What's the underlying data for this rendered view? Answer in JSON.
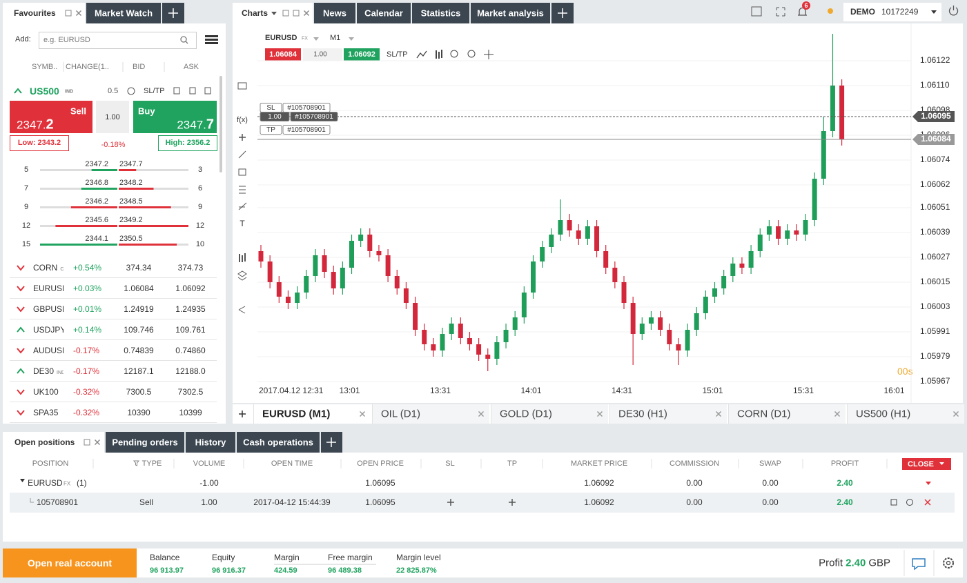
{
  "favourites_panel": {
    "tabs": [
      "Favourites",
      "Market Watch"
    ],
    "add_label": "Add:",
    "search_placeholder": "e.g. EURUSD",
    "columns": [
      "SYMB..",
      "CHANGE(1..",
      "BID",
      "ASK"
    ],
    "instrument": {
      "symbol": "US500",
      "kind": "IND",
      "spread": "0.5",
      "sltp": "SL/TP",
      "sell_label": "Sell",
      "sell_price": [
        "2347.",
        "2"
      ],
      "volume": "1.00",
      "buy_label": "Buy",
      "buy_price": [
        "2347.",
        "7"
      ],
      "low": "Low: 2343.2",
      "change": "-0.18%",
      "high": "High: 2356.2"
    },
    "depth": [
      {
        "bid_volume": 5,
        "bid": "2347.2",
        "ask": "2347.7",
        "ask_volume": 3,
        "bid_color": "#1fa35f",
        "ask_color": "#e0313a"
      },
      {
        "bid_volume": 7,
        "bid": "2346.8",
        "ask": "2348.2",
        "ask_volume": 6,
        "bid_color": "#1fa35f",
        "ask_color": "#e0313a"
      },
      {
        "bid_volume": 9,
        "bid": "2346.2",
        "ask": "2348.5",
        "ask_volume": 9,
        "bid_color": "#e0313a",
        "ask_color": "#e0313a"
      },
      {
        "bid_volume": 12,
        "bid": "2345.6",
        "ask": "2349.2",
        "ask_volume": 12,
        "bid_color": "#e0313a",
        "ask_color": "#e0313a"
      },
      {
        "bid_volume": 15,
        "bid": "2344.1",
        "ask": "2350.5",
        "ask_volume": 10,
        "bid_color": "#1fa35f",
        "ask_color": "#e0313a"
      }
    ],
    "watchlist": [
      {
        "symbol": "CORN",
        "kind": "CMD",
        "direction": "down",
        "change": "+0.54%",
        "bid": "374.34",
        "ask": "374.73"
      },
      {
        "symbol": "EURUSD",
        "direction": "down",
        "change": "+0.03%",
        "bid": "1.06084",
        "ask": "1.06092"
      },
      {
        "symbol": "GBPUSD",
        "direction": "down",
        "change": "+0.01%",
        "bid": "1.24919",
        "ask": "1.24935"
      },
      {
        "symbol": "USDJPY",
        "direction": "up",
        "change": "+0.14%",
        "bid": "109.746",
        "ask": "109.761"
      },
      {
        "symbol": "AUDUSD",
        "direction": "down",
        "change": "-0.17%",
        "bid": "0.74839",
        "ask": "0.74860"
      },
      {
        "symbol": "DE30",
        "kind": "IND",
        "direction": "up",
        "change": "-0.17%",
        "bid": "12187.1",
        "ask": "12188.0"
      },
      {
        "symbol": "UK100",
        "direction": "down",
        "change": "-0.32%",
        "bid": "7300.5",
        "ask": "7302.5"
      },
      {
        "symbol": "SPA35",
        "direction": "down",
        "change": "-0.32%",
        "bid": "10390",
        "ask": "10399"
      }
    ]
  },
  "chart_panel": {
    "tabs": [
      "Charts",
      "News",
      "Calendar",
      "Statistics",
      "Market analysis"
    ],
    "notifications": "6",
    "account_type": "DEMO",
    "account_id": "10172249",
    "symbol": "EURUSD",
    "symbol_kind": "FX",
    "timeframe": "M1",
    "sell_price": "1.06084",
    "volume": "1.00",
    "buy_price": "1.06092",
    "sltp": "SL/TP",
    "toolbar_texts": [
      "f(x)",
      "T"
    ],
    "order_labels": {
      "sl": "SL",
      "tp": "TP",
      "order_id": "#105708901",
      "volume": "1.00"
    },
    "timer": "00s",
    "instrument_tabs": [
      "EURUSD (M1)",
      "OIL (D1)",
      "GOLD (D1)",
      "DE30 (H1)",
      "CORN (D1)",
      "US500 (H1)"
    ]
  },
  "chart_data": {
    "type": "candlestick",
    "up_color": "#1f9e5a",
    "down_color": "#d3283b",
    "grid": true,
    "ylim": [
      1.05958,
      1.06138
    ],
    "yticks": [
      1.06122,
      {
        "value": 1.0611,
        "label": "1.06110"
      },
      1.06098,
      1.06086,
      1.06074,
      1.06062,
      1.06051,
      1.06039,
      1.06027,
      1.06015,
      1.06003,
      1.05991,
      1.05979,
      1.05967
    ],
    "xtick_labels": [
      "2017.04.12 12:31",
      "13:01",
      "13:31",
      "14:01",
      "14:31",
      "15:01",
      "15:31",
      "16:01"
    ],
    "position_line": 1.06095,
    "price_line": 1.06084,
    "ohlc": [
      [
        1.0603,
        1.06033,
        1.06022,
        1.06025
      ],
      [
        1.06025,
        1.06028,
        1.06012,
        1.06015
      ],
      [
        1.06015,
        1.06018,
        1.06005,
        1.06008
      ],
      [
        1.06008,
        1.06011,
        1.06002,
        1.06005
      ],
      [
        1.06005,
        1.06013,
        1.06002,
        1.0601
      ],
      [
        1.0601,
        1.06021,
        1.06007,
        1.06018
      ],
      [
        1.06018,
        1.06031,
        1.06015,
        1.06028
      ],
      [
        1.06028,
        1.06031,
        1.06017,
        1.0602
      ],
      [
        1.0602,
        1.06023,
        1.06009,
        1.06012
      ],
      [
        1.06012,
        1.06025,
        1.06009,
        1.06022
      ],
      [
        1.06022,
        1.06038,
        1.06019,
        1.06035
      ],
      [
        1.06035,
        1.06041,
        1.06032,
        1.06038
      ],
      [
        1.06038,
        1.06041,
        1.06027,
        1.0603
      ],
      [
        1.0603,
        1.06033,
        1.06025,
        1.06028
      ],
      [
        1.06028,
        1.06031,
        1.06015,
        1.06018
      ],
      [
        1.06018,
        1.06021,
        1.06009,
        1.06012
      ],
      [
        1.06012,
        1.06015,
        1.06002,
        1.06005
      ],
      [
        1.06005,
        1.06008,
        1.05989,
        1.05992
      ],
      [
        1.05992,
        1.05995,
        1.05982,
        1.05985
      ],
      [
        1.05985,
        1.05988,
        1.05979,
        1.05982
      ],
      [
        1.05982,
        1.05993,
        1.05979,
        1.0599
      ],
      [
        1.0599,
        1.05998,
        1.05987,
        1.05995
      ],
      [
        1.05995,
        1.05998,
        1.05985,
        1.05988
      ],
      [
        1.05988,
        1.05991,
        1.05982,
        1.05985
      ],
      [
        1.05985,
        1.05988,
        1.05977,
        1.0598
      ],
      [
        1.0598,
        1.05983,
        1.05972,
        1.05978
      ],
      [
        1.05978,
        1.05989,
        1.05975,
        1.05986
      ],
      [
        1.05986,
        1.05995,
        1.05983,
        1.05992
      ],
      [
        1.05992,
        1.06001,
        1.05989,
        1.05998
      ],
      [
        1.05998,
        1.06013,
        1.05995,
        1.0601
      ],
      [
        1.0601,
        1.06028,
        1.06007,
        1.06025
      ],
      [
        1.06025,
        1.06035,
        1.06022,
        1.06032
      ],
      [
        1.06032,
        1.06041,
        1.06029,
        1.06038
      ],
      [
        1.06038,
        1.06055,
        1.06035,
        1.06045
      ],
      [
        1.06045,
        1.06048,
        1.06037,
        1.0604
      ],
      [
        1.0604,
        1.06043,
        1.06033,
        1.06036
      ],
      [
        1.06036,
        1.06045,
        1.06033,
        1.06042
      ],
      [
        1.06042,
        1.06045,
        1.06027,
        1.0603
      ],
      [
        1.0603,
        1.06033,
        1.06019,
        1.06022
      ],
      [
        1.06022,
        1.06025,
        1.06012,
        1.06015
      ],
      [
        1.06015,
        1.06018,
        1.06002,
        1.06005
      ],
      [
        1.06005,
        1.06008,
        1.05975,
        1.0599
      ],
      [
        1.0599,
        1.05998,
        1.05987,
        1.05995
      ],
      [
        1.05995,
        1.06001,
        1.05992,
        1.05998
      ],
      [
        1.05998,
        1.06001,
        1.05989,
        1.05992
      ],
      [
        1.05992,
        1.05995,
        1.05982,
        1.05985
      ],
      [
        1.05985,
        1.05988,
        1.05975,
        1.05982
      ],
      [
        1.05982,
        1.05995,
        1.05979,
        1.05992
      ],
      [
        1.05992,
        1.06003,
        1.05989,
        1.06
      ],
      [
        1.06,
        1.06011,
        1.05997,
        1.06008
      ],
      [
        1.06008,
        1.06015,
        1.06005,
        1.06012
      ],
      [
        1.06012,
        1.06021,
        1.06009,
        1.06018
      ],
      [
        1.06018,
        1.06027,
        1.06015,
        1.06024
      ],
      [
        1.06024,
        1.06027,
        1.06019,
        1.06022
      ],
      [
        1.06022,
        1.06033,
        1.06019,
        1.0603
      ],
      [
        1.0603,
        1.06041,
        1.06027,
        1.06038
      ],
      [
        1.06038,
        1.06045,
        1.06035,
        1.06042
      ],
      [
        1.06042,
        1.06045,
        1.06033,
        1.06036
      ],
      [
        1.06036,
        1.06043,
        1.06033,
        1.0604
      ],
      [
        1.0604,
        1.06043,
        1.06035,
        1.06038
      ],
      [
        1.06038,
        1.06048,
        1.06035,
        1.06045
      ],
      [
        1.06045,
        1.06068,
        1.06042,
        1.06065
      ],
      [
        1.06065,
        1.06095,
        1.06062,
        1.06088
      ],
      [
        1.06088,
        1.06135,
        1.06085,
        1.0611
      ],
      [
        1.0611,
        1.06113,
        1.06081,
        1.06084
      ]
    ]
  },
  "positions_panel": {
    "tabs": [
      "Open positions",
      "Pending orders",
      "History",
      "Cash operations"
    ],
    "columns": [
      "POSITION",
      "TYPE",
      "VOLUME",
      "OPEN TIME",
      "OPEN PRICE",
      "SL",
      "TP",
      "MARKET PRICE",
      "COMMISSION",
      "SWAP",
      "PROFIT"
    ],
    "close_button": "CLOSE",
    "group": {
      "symbol": "EURUSD",
      "kind": "FX",
      "count": "(1)",
      "volume": "-1.00",
      "open_price": "1.06095",
      "market_price": "1.06092",
      "commission": "0.00",
      "swap": "0.00",
      "profit": "2.40"
    },
    "rows": [
      {
        "position": "105708901",
        "type": "Sell",
        "volume": "1.00",
        "open_time": "2017-04-12 15:44:39",
        "open_price": "1.06095",
        "market_price": "1.06092",
        "commission": "0.00",
        "swap": "0.00",
        "profit": "2.40"
      }
    ]
  },
  "footer": {
    "cta": "Open real account",
    "stats": [
      {
        "label": "Balance",
        "value": "96 913.97"
      },
      {
        "label": "Equity",
        "value": "96 916.37"
      },
      {
        "label": "Margin",
        "value": "424.59"
      },
      {
        "label": "Free margin",
        "value": "96 489.38"
      },
      {
        "label": "Margin level",
        "value": "22 825.87%"
      }
    ],
    "profit_label": "Profit",
    "profit_value": "2.40",
    "currency": "GBP"
  }
}
